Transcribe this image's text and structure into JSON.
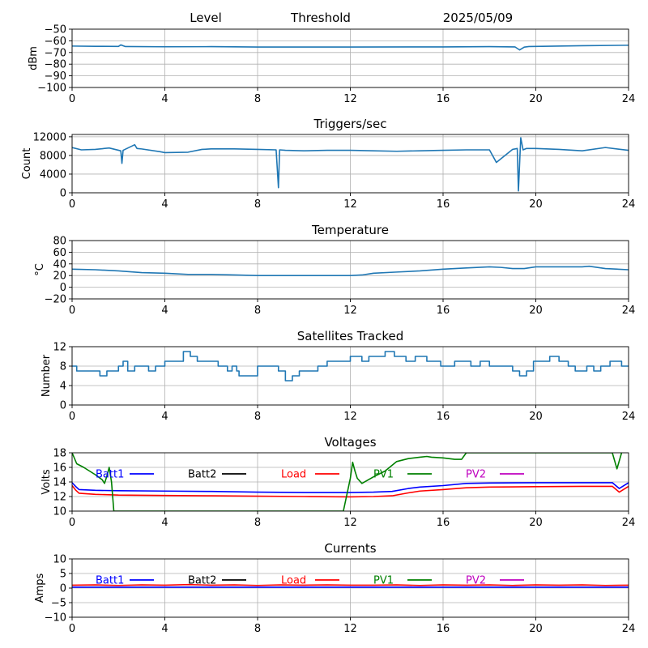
{
  "header": {
    "left": "Level",
    "middle": "Threshold",
    "right": "2025/05/09"
  },
  "chart_data": [
    {
      "id": "level",
      "type": "line",
      "title": "",
      "ylabel": "dBm",
      "ylim": [
        -100,
        -50
      ],
      "yticks": [
        -50,
        -60,
        -70,
        -80,
        -90,
        -100
      ],
      "xlim": [
        0,
        24
      ],
      "xticks": [
        0,
        4,
        8,
        12,
        16,
        20,
        24
      ],
      "grid": true,
      "series": [
        {
          "color": "#1f77b4",
          "x": [
            0,
            1,
            2,
            2.1,
            2.3,
            4,
            6,
            8,
            12,
            16,
            18,
            19.1,
            19.3,
            19.5,
            19.7,
            20,
            22,
            24
          ],
          "y": [
            -64.5,
            -64.7,
            -64.8,
            -63.5,
            -64.9,
            -65.1,
            -65,
            -65.3,
            -65.3,
            -65.2,
            -65,
            -65.2,
            -67.8,
            -65.4,
            -64.9,
            -64.8,
            -64.2,
            -63.8
          ]
        }
      ]
    },
    {
      "id": "triggers",
      "type": "line",
      "title": "Triggers/sec",
      "ylabel": "Count",
      "ylim": [
        0,
        12500
      ],
      "yticks": [
        0,
        4000,
        8000,
        12000
      ],
      "xlim": [
        0,
        24
      ],
      "xticks": [
        0,
        4,
        8,
        12,
        16,
        20,
        24
      ],
      "grid": true,
      "series": [
        {
          "color": "#1f77b4",
          "x": [
            0,
            0.4,
            1,
            1.6,
            2.1,
            2.15,
            2.2,
            2.7,
            2.8,
            3,
            3.8,
            4,
            5,
            5.6,
            6,
            7,
            8,
            8.8,
            8.9,
            8.95,
            9.2,
            10,
            11,
            12,
            13,
            14,
            15,
            16,
            17,
            18,
            18.3,
            19,
            19.2,
            19.25,
            19.35,
            19.45,
            19.6,
            20,
            21,
            22,
            23,
            24
          ],
          "y": [
            9700,
            9200,
            9300,
            9600,
            9000,
            6300,
            9100,
            10300,
            9500,
            9400,
            8800,
            8600,
            8700,
            9300,
            9400,
            9400,
            9300,
            9200,
            1100,
            9200,
            9100,
            9000,
            9100,
            9100,
            9000,
            8900,
            9000,
            9100,
            9200,
            9200,
            6500,
            9300,
            9500,
            400,
            11800,
            9200,
            9500,
            9500,
            9300,
            9000,
            9700,
            9100
          ]
        }
      ]
    },
    {
      "id": "temperature",
      "type": "line",
      "title": "Temperature",
      "ylabel": "°C",
      "ylim": [
        -20,
        80
      ],
      "yticks": [
        -20,
        0,
        20,
        40,
        60,
        80
      ],
      "xlim": [
        0,
        24
      ],
      "xticks": [
        0,
        4,
        8,
        12,
        16,
        20,
        24
      ],
      "grid": true,
      "series": [
        {
          "color": "#1f77b4",
          "x": [
            0,
            1,
            2,
            3,
            4,
            5,
            6,
            7,
            8,
            9,
            10,
            11,
            12,
            12.5,
            13,
            14,
            15,
            16,
            17,
            18,
            18.5,
            19,
            19.5,
            20,
            21,
            22,
            22.3,
            23,
            24
          ],
          "y": [
            31,
            30,
            28,
            25,
            24,
            22,
            22,
            21,
            20,
            20,
            20,
            20,
            20,
            21,
            24,
            26,
            28,
            31,
            33,
            35,
            34,
            32,
            32,
            35,
            35,
            35,
            36,
            32,
            30
          ]
        }
      ]
    },
    {
      "id": "satellites",
      "type": "line",
      "title": "Satellites Tracked",
      "ylabel": "Number",
      "ylim": [
        0,
        12
      ],
      "yticks": [
        0,
        4,
        8,
        12
      ],
      "step": true,
      "xlim": [
        0,
        24
      ],
      "xticks": [
        0,
        4,
        8,
        12,
        16,
        20,
        24
      ],
      "grid": true,
      "series": [
        {
          "color": "#1f77b4",
          "x": [
            0,
            0.2,
            1,
            1.2,
            1.5,
            2,
            2.2,
            2.4,
            2.7,
            3.2,
            3.3,
            3.6,
            4,
            4.3,
            4.8,
            5.1,
            5.4,
            5.7,
            6.3,
            6.7,
            6.9,
            7.1,
            7.2,
            8,
            8.4,
            8.9,
            9.2,
            9.5,
            9.8,
            10.2,
            10.6,
            11,
            11.8,
            12,
            12.5,
            12.8,
            13.1,
            13.5,
            13.9,
            14.4,
            14.8,
            15.3,
            15.9,
            16.5,
            17.2,
            17.6,
            18,
            18.6,
            19,
            19.3,
            19.6,
            19.9,
            20.6,
            21,
            21.4,
            21.7,
            22.2,
            22.5,
            22.8,
            23.2,
            23.7,
            24
          ],
          "y": [
            8,
            7,
            7,
            6,
            7,
            8,
            9,
            7,
            8,
            8,
            7,
            8,
            9,
            9,
            11,
            10,
            9,
            9,
            8,
            7,
            8,
            7,
            6,
            8,
            8,
            7,
            5,
            6,
            7,
            7,
            8,
            9,
            9,
            10,
            9,
            10,
            10,
            11,
            10,
            9,
            10,
            9,
            8,
            9,
            8,
            9,
            8,
            8,
            7,
            6,
            7,
            9,
            10,
            9,
            8,
            7,
            8,
            7,
            8,
            9,
            8,
            8
          ]
        }
      ]
    },
    {
      "id": "voltages",
      "type": "line",
      "title": "Voltages",
      "ylabel": "Volts",
      "ylim": [
        10,
        18
      ],
      "yticks": [
        10,
        12,
        14,
        16,
        18
      ],
      "xlim": [
        0,
        24
      ],
      "xticks": [
        0,
        4,
        8,
        12,
        16,
        20,
        24
      ],
      "grid": true,
      "series": [
        {
          "name": "Batt1",
          "color": "#0000ff",
          "x": [
            0,
            0.15,
            0.3,
            1,
            2,
            4,
            6,
            8,
            10,
            12,
            13,
            13.8,
            14.5,
            15,
            16,
            17,
            18,
            20,
            22,
            23.3,
            23.6,
            24
          ],
          "y": [
            13.9,
            13.4,
            12.95,
            12.85,
            12.8,
            12.75,
            12.7,
            12.6,
            12.55,
            12.55,
            12.6,
            12.7,
            13.1,
            13.3,
            13.5,
            13.8,
            13.85,
            13.9,
            13.9,
            13.9,
            13.1,
            13.9
          ]
        },
        {
          "name": "Load",
          "color": "#ff0000",
          "x": [
            0,
            0.15,
            0.3,
            1,
            2,
            4,
            6,
            8,
            10,
            12,
            13,
            13.8,
            14.5,
            15,
            16,
            17,
            18,
            20,
            22,
            23.3,
            23.6,
            24
          ],
          "y": [
            13.5,
            12.9,
            12.45,
            12.3,
            12.2,
            12.15,
            12.1,
            12.05,
            12.0,
            11.95,
            12.0,
            12.1,
            12.5,
            12.75,
            12.95,
            13.2,
            13.3,
            13.35,
            13.4,
            13.4,
            12.6,
            13.4
          ]
        },
        {
          "name": "PV1",
          "color": "#008000",
          "x": [
            0,
            0.2,
            0.5,
            1,
            1.3,
            1.4,
            1.5,
            1.6,
            1.7,
            1.8,
            11.7,
            11.8,
            12,
            12.1,
            12.2,
            12.3,
            12.5,
            13,
            13.5,
            14,
            14.5,
            15,
            15.3,
            15.5,
            16,
            16.5,
            16.8,
            17,
            23.3,
            23.5,
            23.7
          ],
          "y": [
            18,
            16.5,
            16,
            15,
            14.3,
            13.8,
            14.8,
            16,
            14,
            10,
            10,
            11.5,
            14.5,
            16.7,
            15.5,
            14.5,
            13.8,
            14.7,
            15.5,
            16.8,
            17.2,
            17.4,
            17.5,
            17.4,
            17.3,
            17.1,
            17.1,
            18,
            18,
            15.8,
            18
          ]
        },
        {
          "name": "Batt2",
          "color": "#000000",
          "x": [],
          "y": []
        },
        {
          "name": "PV2",
          "color": "#bf00bf",
          "x": [],
          "y": []
        }
      ],
      "legend_order": [
        "Batt1",
        "Batt2",
        "Load",
        "PV1",
        "PV2"
      ],
      "legend_placement": "top, single row"
    },
    {
      "id": "currents",
      "type": "line",
      "title": "Currents",
      "ylabel": "Amps",
      "ylim": [
        -10,
        10
      ],
      "yticks": [
        -10,
        -5,
        0,
        5,
        10
      ],
      "xlim": [
        0,
        24
      ],
      "xticks": [
        0,
        4,
        8,
        12,
        16,
        20,
        24
      ],
      "grid": true,
      "series": [
        {
          "name": "Batt1",
          "color": "#0000ff",
          "x": [
            0,
            2,
            4,
            6,
            8,
            10,
            12,
            14,
            16,
            18,
            20,
            22,
            24
          ],
          "y": [
            0.3,
            0.3,
            0.3,
            0.3,
            0.3,
            0.3,
            0.3,
            0.3,
            0.3,
            0.3,
            0.3,
            0.3,
            0.3
          ]
        },
        {
          "name": "Load",
          "color": "#ff0000",
          "x": [
            0,
            1,
            2,
            3,
            4,
            5,
            6,
            7,
            8,
            9,
            10,
            11,
            12,
            13,
            14,
            15,
            16,
            17,
            18,
            19,
            20,
            21,
            22,
            23,
            24
          ],
          "y": [
            1,
            1.1,
            0.9,
            1.1,
            1,
            1.2,
            1,
            1.1,
            0.9,
            1.1,
            1,
            1.1,
            1,
            1,
            1.1,
            0.9,
            1.1,
            1,
            1.1,
            0.9,
            1.1,
            1,
            1.1,
            0.9,
            1
          ]
        },
        {
          "name": "Batt2",
          "color": "#000000",
          "x": [],
          "y": []
        },
        {
          "name": "PV1",
          "color": "#008000",
          "x": [],
          "y": []
        },
        {
          "name": "PV2",
          "color": "#bf00bf",
          "x": [],
          "y": []
        }
      ],
      "legend_order": [
        "Batt1",
        "Batt2",
        "Load",
        "PV1",
        "PV2"
      ],
      "legend_placement": "top, single row"
    }
  ]
}
